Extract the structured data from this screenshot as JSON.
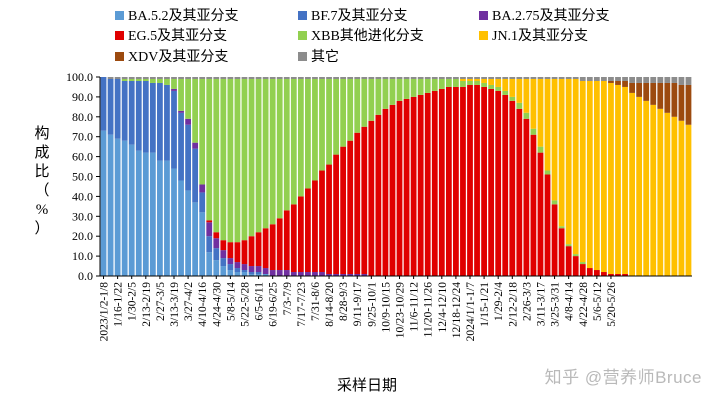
{
  "chart_data": {
    "type": "bar",
    "stacked": true,
    "ylabel": "构成比（%）",
    "xlabel": "采样日期",
    "ylim": [
      0,
      100
    ],
    "yticks": [
      "0.0",
      "10.0",
      "20.0",
      "30.0",
      "40.0",
      "50.0",
      "60.0",
      "70.0",
      "80.0",
      "90.0",
      "100.0"
    ],
    "grid": false,
    "legend_position": "top",
    "x_tick_labels": [
      "2023/1/2-1/8",
      "1/16-1/22",
      "1/30-2/5",
      "2/13-2/19",
      "2/27-3/5",
      "3/13-3/19",
      "3/27-4/2",
      "4/10-4/16",
      "4/24-4/30",
      "5/8-5/14",
      "5/22-5/28",
      "6/5-6/11",
      "6/19-6/25",
      "7/3-7/9",
      "7/17-7/23",
      "7/31-8/6",
      "8/14-8/20",
      "8/28-9/3",
      "9/11-9/17",
      "9/25-10/1",
      "10/9-10/15",
      "10/23-10/29",
      "11/6-11/12",
      "11/20-11/26",
      "12/4-12/10",
      "12/18-12/24",
      "2024/1/1-1/7",
      "1/15-1/21",
      "1/29-2/4",
      "2/12-2/18",
      "2/26-3/3",
      "3/11-3/17",
      "3/25-3/31",
      "4/8-4/14",
      "4/22-4/28",
      "5/6-5/12",
      "5/20-5/26"
    ],
    "series": [
      {
        "name": "BA.5.2及其亚分支",
        "color": "#5B9BD5"
      },
      {
        "name": "BF.7及其亚分支",
        "color": "#4472C4"
      },
      {
        "name": "BA.2.75及其亚分支",
        "color": "#7030A0"
      },
      {
        "name": "EG.5及其亚分支",
        "color": "#E00000"
      },
      {
        "name": "XBB其他进化分支",
        "color": "#92D050"
      },
      {
        "name": "JN.1及其亚分支",
        "color": "#FFC000"
      },
      {
        "name": "XDV及其亚分支",
        "color": "#9C4A0F"
      },
      {
        "name": "其它",
        "color": "#8C8C8C"
      }
    ],
    "weeks": [
      [
        0,
        73,
        27,
        0,
        0,
        0,
        0,
        0,
        0
      ],
      [
        1,
        71,
        28,
        0,
        0,
        0,
        0,
        0,
        1
      ],
      [
        2,
        69,
        30,
        0,
        0,
        0,
        0,
        0,
        1
      ],
      [
        3,
        68,
        30,
        0,
        0,
        1,
        0,
        0,
        1
      ],
      [
        4,
        66,
        32,
        0,
        0,
        1,
        0,
        0,
        1
      ],
      [
        5,
        63,
        35,
        0,
        0,
        1,
        0,
        0,
        1
      ],
      [
        6,
        62,
        36,
        0,
        0,
        1,
        0,
        0,
        1
      ],
      [
        7,
        62,
        35,
        0,
        0,
        2,
        0,
        0,
        1
      ],
      [
        8,
        58,
        39,
        0,
        0,
        2,
        0,
        0,
        1
      ],
      [
        9,
        58,
        38,
        0,
        0,
        3,
        0,
        0,
        1
      ],
      [
        10,
        54,
        39,
        1,
        0,
        5,
        0,
        0,
        1
      ],
      [
        11,
        48,
        34,
        1,
        0,
        16,
        0,
        0,
        1
      ],
      [
        12,
        43,
        33,
        3,
        0,
        20,
        0,
        0,
        1
      ],
      [
        13,
        37,
        27,
        3,
        0,
        32,
        0,
        0,
        1
      ],
      [
        14,
        32,
        10,
        4,
        0,
        53,
        0,
        0,
        1
      ],
      [
        15,
        12,
        8,
        7,
        1,
        71,
        0,
        0,
        1
      ],
      [
        16,
        8,
        6,
        5,
        3,
        77,
        0,
        0,
        1
      ],
      [
        17,
        5,
        4,
        4,
        5,
        81,
        0,
        0,
        1
      ],
      [
        18,
        3,
        3,
        3,
        8,
        82,
        0,
        0,
        1
      ],
      [
        19,
        2,
        2,
        3,
        10,
        82,
        0,
        0,
        1
      ],
      [
        20,
        2,
        1,
        3,
        12,
        81,
        0,
        0,
        1
      ],
      [
        21,
        1,
        1,
        3,
        15,
        79,
        0,
        0,
        1
      ],
      [
        22,
        1,
        1,
        3,
        17,
        77,
        0,
        0,
        1
      ],
      [
        23,
        1,
        0,
        3,
        20,
        75,
        0,
        0,
        1
      ],
      [
        24,
        0,
        0,
        3,
        23,
        73,
        0,
        0,
        1
      ],
      [
        25,
        0,
        0,
        3,
        26,
        70,
        0,
        0,
        1
      ],
      [
        26,
        0,
        0,
        3,
        30,
        66,
        0,
        0,
        1
      ],
      [
        27,
        0,
        0,
        2,
        34,
        63,
        0,
        0,
        1
      ],
      [
        28,
        0,
        0,
        2,
        38,
        59,
        0,
        0,
        1
      ],
      [
        29,
        0,
        0,
        2,
        42,
        55,
        0,
        0,
        1
      ],
      [
        30,
        0,
        0,
        2,
        46,
        51,
        0,
        0,
        1
      ],
      [
        31,
        0,
        0,
        2,
        51,
        46,
        0,
        0,
        1
      ],
      [
        32,
        0,
        0,
        1,
        55,
        43,
        0,
        0,
        1
      ],
      [
        33,
        0,
        0,
        1,
        60,
        38,
        0,
        0,
        1
      ],
      [
        34,
        0,
        0,
        1,
        64,
        34,
        0,
        0,
        1
      ],
      [
        35,
        0,
        0,
        1,
        67,
        31,
        0,
        0,
        1
      ],
      [
        36,
        0,
        0,
        1,
        71,
        27,
        0,
        0,
        1
      ],
      [
        37,
        0,
        0,
        1,
        74,
        24,
        0,
        0,
        1
      ],
      [
        38,
        0,
        0,
        0,
        78,
        21,
        0,
        0,
        1
      ],
      [
        39,
        0,
        0,
        0,
        81,
        18,
        0,
        0,
        1
      ],
      [
        40,
        0,
        0,
        0,
        84,
        15,
        0,
        0,
        1
      ],
      [
        41,
        0,
        0,
        0,
        86,
        13,
        0,
        0,
        1
      ],
      [
        42,
        0,
        0,
        0,
        88,
        11,
        0,
        0,
        1
      ],
      [
        43,
        0,
        0,
        0,
        89,
        10,
        0,
        0,
        1
      ],
      [
        44,
        0,
        0,
        0,
        90,
        9,
        0,
        0,
        1
      ],
      [
        45,
        0,
        0,
        0,
        91,
        8,
        0,
        0,
        1
      ],
      [
        46,
        0,
        0,
        0,
        92,
        7,
        0,
        0,
        1
      ],
      [
        47,
        0,
        0,
        0,
        93,
        6,
        0,
        0,
        1
      ],
      [
        48,
        0,
        0,
        0,
        94,
        5,
        0,
        0,
        1
      ],
      [
        49,
        0,
        0,
        0,
        95,
        4,
        0,
        0,
        1
      ],
      [
        50,
        0,
        0,
        0,
        95,
        4,
        0,
        0,
        1
      ],
      [
        51,
        0,
        0,
        0,
        95,
        3,
        1,
        0,
        1
      ],
      [
        52,
        0,
        0,
        0,
        96,
        2,
        1,
        0,
        1
      ],
      [
        53,
        0,
        0,
        0,
        96,
        2,
        1,
        0,
        1
      ],
      [
        54,
        0,
        0,
        0,
        95,
        2,
        2,
        0,
        1
      ],
      [
        55,
        0,
        0,
        0,
        94,
        2,
        3,
        0,
        1
      ],
      [
        56,
        0,
        0,
        0,
        93,
        2,
        4,
        0,
        1
      ],
      [
        57,
        0,
        0,
        0,
        91,
        2,
        6,
        0,
        1
      ],
      [
        58,
        0,
        0,
        0,
        88,
        2,
        9,
        0,
        1
      ],
      [
        59,
        0,
        0,
        0,
        84,
        3,
        12,
        0,
        1
      ],
      [
        60,
        0,
        0,
        0,
        79,
        3,
        17,
        0,
        1
      ],
      [
        61,
        0,
        0,
        0,
        71,
        3,
        25,
        0,
        1
      ],
      [
        62,
        0,
        0,
        0,
        62,
        3,
        34,
        0,
        1
      ],
      [
        63,
        0,
        0,
        0,
        51,
        2,
        46,
        0,
        1
      ],
      [
        64,
        0,
        0,
        0,
        36,
        2,
        61,
        0,
        1
      ],
      [
        65,
        0,
        0,
        0,
        24,
        1,
        74,
        0,
        1
      ],
      [
        66,
        0,
        0,
        0,
        15,
        1,
        83,
        0,
        1
      ],
      [
        67,
        0,
        0,
        0,
        10,
        1,
        88,
        0,
        1
      ],
      [
        68,
        0,
        0,
        0,
        6,
        1,
        91,
        0,
        2
      ],
      [
        69,
        0,
        0,
        0,
        4,
        0,
        94,
        0,
        2
      ],
      [
        70,
        0,
        0,
        0,
        3,
        0,
        95,
        0,
        2
      ],
      [
        71,
        0,
        0,
        0,
        2,
        0,
        96,
        0,
        2
      ],
      [
        72,
        0,
        0,
        0,
        1,
        0,
        96,
        1,
        2
      ],
      [
        73,
        0,
        0,
        0,
        1,
        0,
        95,
        2,
        2
      ],
      [
        74,
        0,
        0,
        0,
        1,
        0,
        94,
        3,
        2
      ],
      [
        75,
        0,
        0,
        0,
        0,
        0,
        92,
        5,
        3
      ],
      [
        76,
        0,
        0,
        0,
        0,
        0,
        90,
        7,
        3
      ],
      [
        77,
        0,
        0,
        0,
        0,
        0,
        88,
        9,
        3
      ],
      [
        78,
        0,
        0,
        0,
        0,
        0,
        86,
        11,
        3
      ],
      [
        79,
        0,
        0,
        0,
        0,
        0,
        84,
        13,
        3
      ],
      [
        80,
        0,
        0,
        0,
        0,
        0,
        82,
        15,
        3
      ],
      [
        81,
        0,
        0,
        0,
        0,
        0,
        80,
        17,
        3
      ],
      [
        82,
        0,
        0,
        0,
        0,
        0,
        78,
        18,
        4
      ],
      [
        83,
        0,
        0,
        0,
        0,
        0,
        76,
        20,
        4
      ]
    ]
  },
  "watermark": "知乎 @营养师Bruce"
}
